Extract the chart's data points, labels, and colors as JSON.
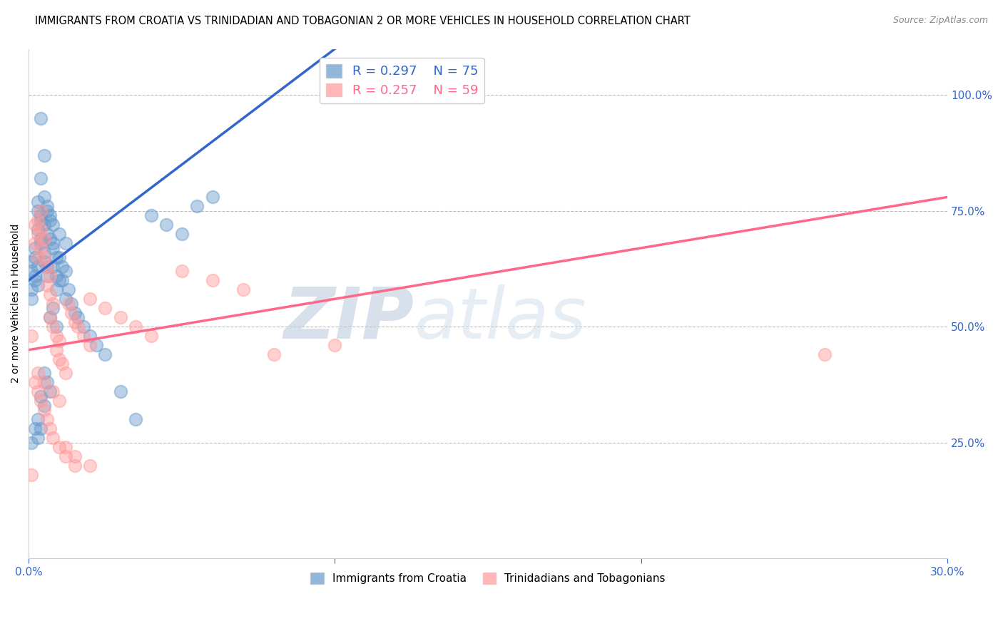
{
  "title": "IMMIGRANTS FROM CROATIA VS TRINIDADIAN AND TOBAGONIAN 2 OR MORE VEHICLES IN HOUSEHOLD CORRELATION CHART",
  "source": "Source: ZipAtlas.com",
  "ylabel": "2 or more Vehicles in Household",
  "right_ytick_labels": [
    "100.0%",
    "75.0%",
    "50.0%",
    "25.0%"
  ],
  "right_ytick_values": [
    1.0,
    0.75,
    0.5,
    0.25
  ],
  "xlim": [
    0.0,
    0.3
  ],
  "ylim": [
    0.0,
    1.1
  ],
  "blue_R": 0.297,
  "blue_N": 75,
  "pink_R": 0.257,
  "pink_N": 59,
  "blue_color": "#6699CC",
  "pink_color": "#FF9999",
  "blue_line_color": "#3366CC",
  "pink_line_color": "#FF6688",
  "legend_label_blue": "Immigrants from Croatia",
  "legend_label_pink": "Trinidadians and Tobagonians",
  "watermark_zip": "ZIP",
  "watermark_atlas": "atlas",
  "blue_line_x0": 0.0,
  "blue_line_y0": 0.6,
  "blue_line_x1": 0.08,
  "blue_line_y1": 1.0,
  "pink_line_x0": 0.0,
  "pink_line_x1": 0.3,
  "pink_line_y0": 0.45,
  "pink_line_y1": 0.78,
  "blue_scatter_x": [
    0.004,
    0.005,
    0.004,
    0.005,
    0.004,
    0.005,
    0.006,
    0.007,
    0.006,
    0.008,
    0.006,
    0.007,
    0.008,
    0.007,
    0.008,
    0.009,
    0.008,
    0.009,
    0.01,
    0.009,
    0.003,
    0.003,
    0.004,
    0.003,
    0.004,
    0.004,
    0.005,
    0.005,
    0.006,
    0.006,
    0.002,
    0.002,
    0.003,
    0.002,
    0.003,
    0.001,
    0.001,
    0.002,
    0.001,
    0.001,
    0.01,
    0.011,
    0.012,
    0.011,
    0.013,
    0.012,
    0.014,
    0.015,
    0.016,
    0.018,
    0.02,
    0.022,
    0.025,
    0.03,
    0.035,
    0.01,
    0.012,
    0.008,
    0.007,
    0.009,
    0.005,
    0.006,
    0.007,
    0.004,
    0.005,
    0.003,
    0.004,
    0.002,
    0.003,
    0.001,
    0.06,
    0.055,
    0.04,
    0.045,
    0.05
  ],
  "blue_scatter_y": [
    0.95,
    0.87,
    0.82,
    0.78,
    0.74,
    0.72,
    0.75,
    0.73,
    0.7,
    0.68,
    0.76,
    0.74,
    0.72,
    0.69,
    0.67,
    0.65,
    0.63,
    0.61,
    0.6,
    0.58,
    0.77,
    0.75,
    0.73,
    0.71,
    0.69,
    0.68,
    0.66,
    0.64,
    0.63,
    0.61,
    0.67,
    0.65,
    0.63,
    0.61,
    0.59,
    0.64,
    0.62,
    0.6,
    0.58,
    0.56,
    0.65,
    0.63,
    0.62,
    0.6,
    0.58,
    0.56,
    0.55,
    0.53,
    0.52,
    0.5,
    0.48,
    0.46,
    0.44,
    0.36,
    0.3,
    0.7,
    0.68,
    0.54,
    0.52,
    0.5,
    0.4,
    0.38,
    0.36,
    0.35,
    0.33,
    0.3,
    0.28,
    0.28,
    0.26,
    0.25,
    0.78,
    0.76,
    0.74,
    0.72,
    0.7
  ],
  "pink_scatter_x": [
    0.001,
    0.002,
    0.003,
    0.002,
    0.003,
    0.004,
    0.003,
    0.004,
    0.005,
    0.004,
    0.005,
    0.006,
    0.007,
    0.006,
    0.007,
    0.008,
    0.007,
    0.008,
    0.009,
    0.01,
    0.009,
    0.01,
    0.011,
    0.012,
    0.013,
    0.014,
    0.015,
    0.016,
    0.018,
    0.02,
    0.002,
    0.003,
    0.004,
    0.005,
    0.006,
    0.007,
    0.008,
    0.01,
    0.012,
    0.015,
    0.02,
    0.025,
    0.03,
    0.035,
    0.04,
    0.05,
    0.06,
    0.07,
    0.08,
    0.1,
    0.003,
    0.005,
    0.008,
    0.01,
    0.012,
    0.015,
    0.02,
    0.26,
    0.001
  ],
  "pink_scatter_y": [
    0.48,
    0.72,
    0.7,
    0.68,
    0.65,
    0.75,
    0.73,
    0.71,
    0.69,
    0.67,
    0.65,
    0.63,
    0.61,
    0.59,
    0.57,
    0.55,
    0.52,
    0.5,
    0.48,
    0.47,
    0.45,
    0.43,
    0.42,
    0.4,
    0.55,
    0.53,
    0.51,
    0.5,
    0.48,
    0.46,
    0.38,
    0.36,
    0.34,
    0.32,
    0.3,
    0.28,
    0.26,
    0.24,
    0.22,
    0.2,
    0.56,
    0.54,
    0.52,
    0.5,
    0.48,
    0.62,
    0.6,
    0.58,
    0.44,
    0.46,
    0.4,
    0.38,
    0.36,
    0.34,
    0.24,
    0.22,
    0.2,
    0.44,
    0.18
  ]
}
